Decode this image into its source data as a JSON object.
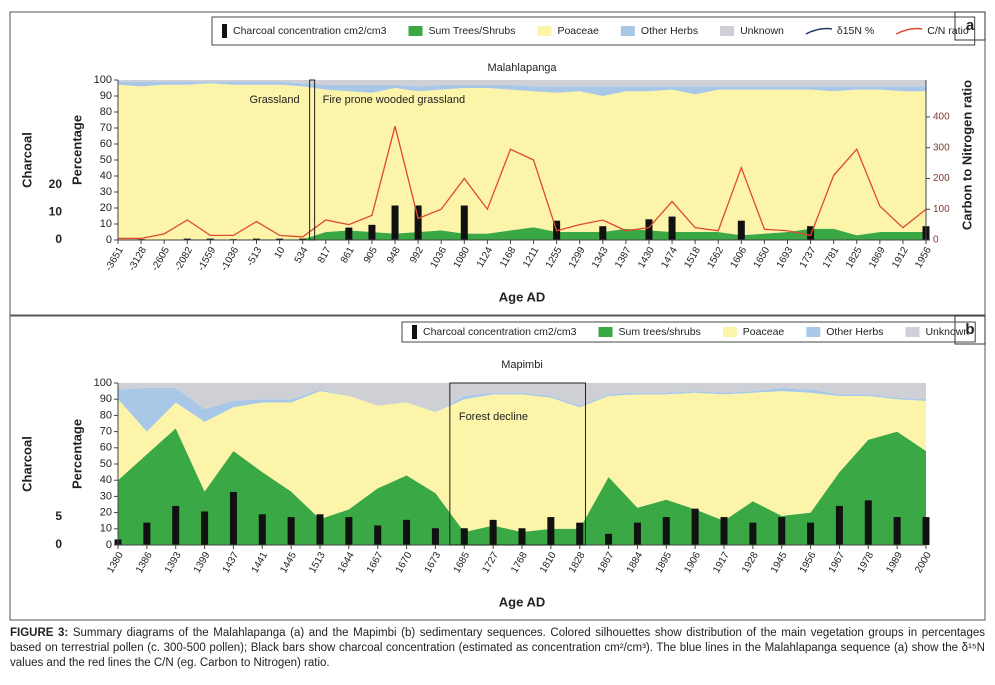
{
  "chart_data": [
    {
      "type": "stacked_area",
      "panel_label": "a",
      "title": "Malahlapanga",
      "xlabel": "Age AD",
      "ylabel": "Percentage",
      "y3label": "Charcoal",
      "y2label": "Carbon to Nitrogen ratio",
      "categories": [
        "-3651",
        "-3128",
        "-2605",
        "-2082",
        "-1559",
        "-1036",
        "-513",
        "10",
        "534",
        "817",
        "861",
        "905",
        "948",
        "992",
        "1036",
        "1080",
        "1124",
        "1168",
        "1211",
        "1255",
        "1299",
        "1343",
        "1387",
        "1430",
        "1474",
        "1518",
        "1562",
        "1606",
        "1650",
        "1693",
        "1737",
        "1781",
        "1825",
        "1869",
        "1912",
        "1956"
      ],
      "ylim": [
        0,
        100
      ],
      "yticks": [
        0,
        10,
        20,
        30,
        40,
        50,
        60,
        70,
        80,
        90,
        100
      ],
      "y2lim": [
        0,
        520
      ],
      "y2ticks": [
        0,
        100,
        200,
        300,
        400
      ],
      "y3lim": [
        0,
        58
      ],
      "y3ticks": [
        0,
        10,
        20
      ],
      "annotations": [
        "Grassland",
        "Fire prone wooded grassland"
      ],
      "series": [
        {
          "name": "Charcoal concentration cm2/cm3",
          "kind": "bar",
          "axis": "y3",
          "color": "#111111",
          "values": [
            0,
            0.3,
            0,
            0.5,
            0.5,
            0.3,
            0.5,
            0.5,
            0.5,
            0,
            4.5,
            5.5,
            12.5,
            12.5,
            0,
            12.5,
            0,
            0,
            0,
            7,
            0,
            5,
            0,
            7.5,
            8.5,
            0,
            0,
            7,
            0,
            0,
            5,
            0,
            0,
            0,
            0,
            5
          ]
        },
        {
          "name": "Sum Trees/Shrubs",
          "kind": "area",
          "color": "#3aa845",
          "values": [
            0,
            0.3,
            0,
            0.5,
            0.5,
            0.3,
            0.5,
            0.5,
            0.5,
            5,
            6,
            5,
            4,
            5,
            6,
            4,
            4,
            6,
            8,
            5,
            5,
            5,
            7,
            6,
            5,
            5,
            5,
            3,
            4,
            5,
            7,
            7,
            3,
            5,
            5,
            5
          ]
        },
        {
          "name": "Poaceae",
          "kind": "area",
          "color": "#fbf4a9",
          "values": [
            97,
            95.7,
            97,
            96.5,
            97.5,
            96.7,
            96.5,
            96.5,
            95.5,
            89,
            87,
            87,
            91,
            88,
            88,
            91,
            91,
            88,
            85,
            87,
            88,
            85,
            86,
            87,
            89,
            86,
            89,
            91,
            90,
            89,
            87,
            86,
            91,
            89,
            88,
            88
          ]
        },
        {
          "name": "Other Herbs",
          "kind": "area",
          "color": "#a9c8e8",
          "values": [
            2,
            3,
            2,
            2,
            1,
            2,
            2,
            2,
            2,
            3,
            4,
            5,
            2,
            3,
            3,
            2,
            2,
            3,
            3,
            4,
            3,
            6,
            3,
            3,
            2,
            5,
            2,
            2,
            2,
            2,
            2,
            3,
            2,
            2,
            3,
            3
          ]
        },
        {
          "name": "Unknown",
          "kind": "area",
          "color": "#cfd0d6",
          "values": [
            1,
            1,
            1,
            1,
            1,
            1,
            1,
            1,
            2,
            3,
            3,
            3,
            3,
            4,
            3,
            3,
            3,
            3,
            4,
            4,
            4,
            4,
            4,
            4,
            4,
            4,
            4,
            4,
            4,
            4,
            4,
            4,
            4,
            4,
            4,
            4
          ]
        },
        {
          "name": "δ15N %",
          "kind": "line",
          "axis": "y2",
          "color": "#1f3864",
          "values": [
            null,
            null,
            null,
            null,
            null,
            null,
            null,
            null,
            null,
            null,
            null,
            null,
            null,
            null,
            null,
            null,
            null,
            null,
            null,
            null,
            null,
            null,
            null,
            null,
            null,
            null,
            null,
            null,
            null,
            null,
            null,
            null,
            null,
            null,
            null,
            null
          ]
        },
        {
          "name": "C/N ratio",
          "kind": "line",
          "axis": "y2",
          "color": "#e0492e",
          "values": [
            5,
            5,
            20,
            65,
            15,
            15,
            60,
            15,
            10,
            65,
            50,
            80,
            370,
            70,
            100,
            200,
            100,
            295,
            260,
            30,
            50,
            65,
            30,
            40,
            125,
            40,
            30,
            235,
            35,
            30,
            15,
            210,
            295,
            110,
            40,
            100
          ]
        }
      ]
    },
    {
      "type": "stacked_area",
      "panel_label": "b",
      "title": "Mapimbi",
      "xlabel": "Age AD",
      "ylabel": "Percentage",
      "y3label": "Charcoal",
      "categories": [
        "1380",
        "1386",
        "1393",
        "1399",
        "1437",
        "1441",
        "1445",
        "1513",
        "1644",
        "1667",
        "1670",
        "1673",
        "1685",
        "1727",
        "1768",
        "1810",
        "1828",
        "1867",
        "1884",
        "1895",
        "1906",
        "1917",
        "1928",
        "1945",
        "1956",
        "1967",
        "1978",
        "1989",
        "2000"
      ],
      "ylim": [
        0,
        100
      ],
      "yticks": [
        0,
        10,
        20,
        30,
        40,
        50,
        60,
        70,
        80,
        90,
        100
      ],
      "y3lim": [
        0,
        29
      ],
      "y3ticks": [
        0,
        5
      ],
      "annotations": [
        "Forest decline"
      ],
      "series": [
        {
          "name": "Charcoal concentration cm2/cm3",
          "kind": "bar",
          "axis": "y3",
          "color": "#111111",
          "values": [
            1,
            4,
            7,
            6,
            9.5,
            5.5,
            5,
            5.5,
            5,
            3.5,
            4.5,
            3,
            3,
            4.5,
            3,
            5,
            4,
            2,
            4,
            5,
            6.5,
            5,
            4,
            5,
            4,
            7,
            8,
            5,
            5
          ]
        },
        {
          "name": "Sum trees/shrubs",
          "kind": "area",
          "color": "#3aa845",
          "values": [
            40,
            56,
            72,
            33,
            58,
            45,
            33,
            16,
            22,
            35,
            43,
            32,
            8,
            12,
            8,
            10,
            10,
            42,
            23,
            28,
            22,
            15,
            27,
            18,
            20,
            45,
            65,
            70,
            58
          ]
        },
        {
          "name": "Poaceae",
          "kind": "area",
          "color": "#fbf4a9",
          "values": [
            50,
            14,
            16,
            43,
            27,
            43,
            55,
            79,
            70,
            51,
            45,
            50,
            82,
            81,
            85,
            81,
            75,
            50,
            70,
            65,
            72,
            78,
            67,
            77,
            74,
            47,
            27,
            20,
            31
          ]
        },
        {
          "name": "Other Herbs",
          "kind": "area",
          "color": "#a9c8e8",
          "values": [
            6,
            27,
            9,
            8,
            4,
            2,
            2,
            1,
            0,
            0,
            0,
            0,
            2,
            1,
            1,
            1,
            1,
            1,
            1,
            1,
            1,
            1,
            1,
            2,
            2,
            1,
            1,
            1,
            1
          ]
        },
        {
          "name": "Unknown",
          "kind": "area",
          "color": "#cfd0d6",
          "values": [
            4,
            3,
            3,
            16,
            11,
            10,
            10,
            4,
            8,
            14,
            12,
            18,
            8,
            6,
            6,
            8,
            14,
            7,
            6,
            6,
            5,
            6,
            5,
            3,
            4,
            7,
            7,
            9,
            10
          ]
        }
      ]
    }
  ],
  "caption": {
    "label": "FIGURE 3:",
    "text": "Summary diagrams of the Malahlapanga (a) and the Mapimbi (b) sedimentary sequences. Colored silhouettes show distribution of the main vegetation groups in percentages based on terrestrial pollen (c. 300-500 pollen); Black bars show charcoal concentration (estimated as concentration cm²/cm³). The blue lines in the Malahlapanga sequence (a) show the δ¹⁵N values and the red lines the C/N (eg. Carbon to Nitrogen) ratio."
  }
}
